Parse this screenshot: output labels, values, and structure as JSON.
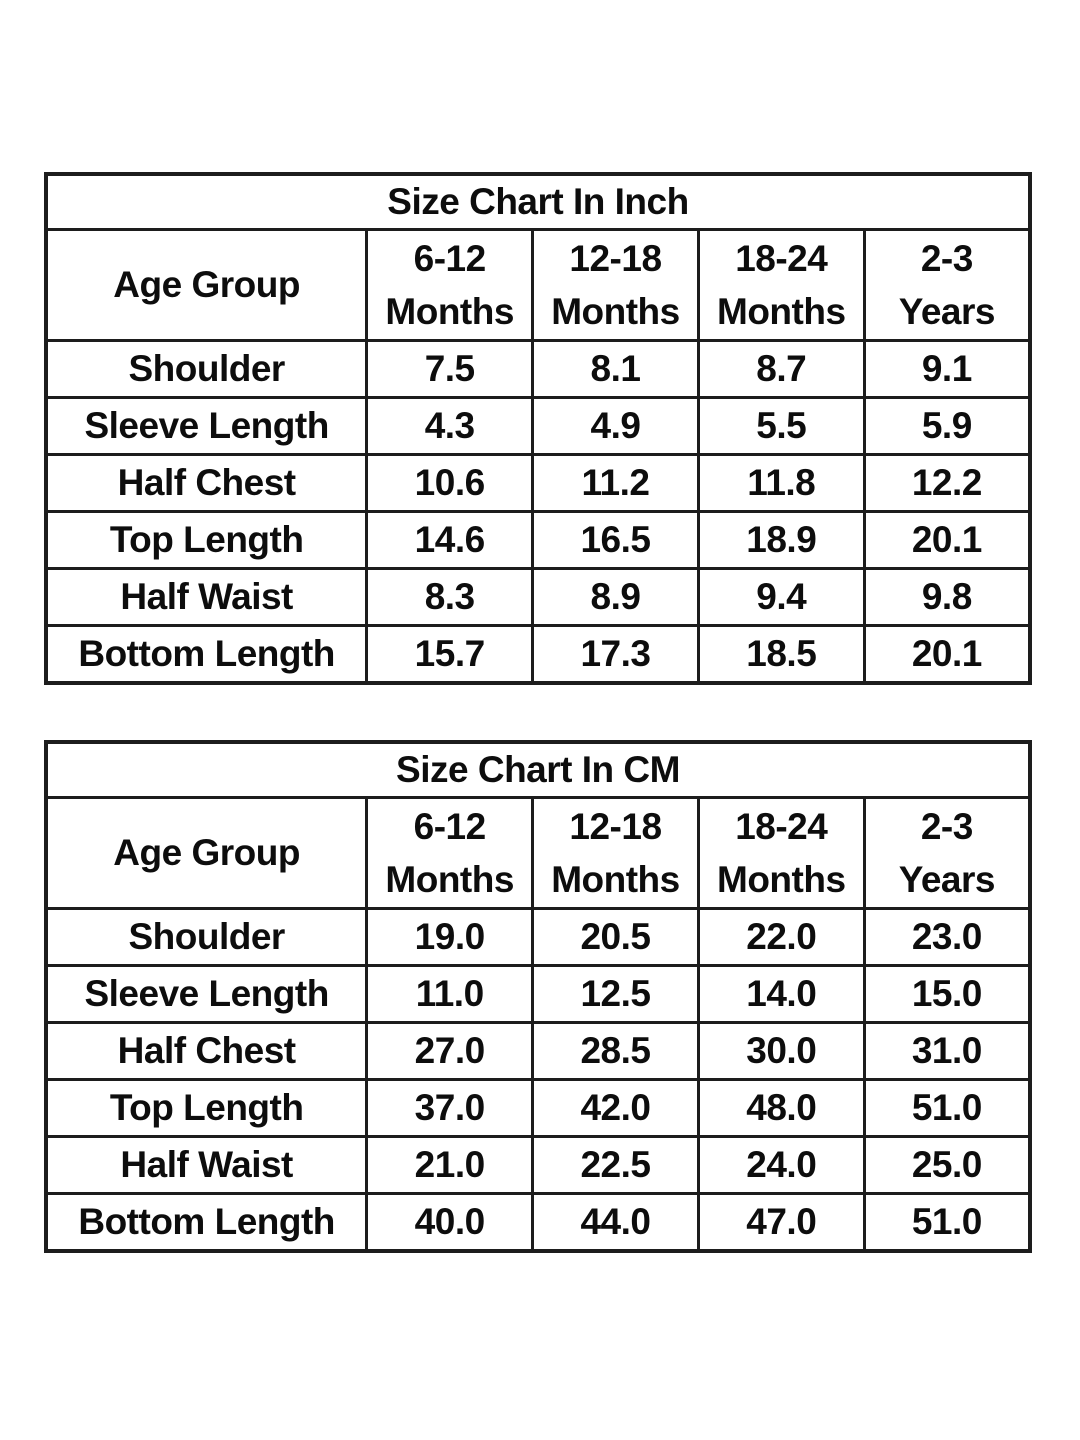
{
  "page": {
    "background": "#ffffff",
    "text_color": "#0d0d0d",
    "border_color": "#1d1d1d"
  },
  "tables": [
    {
      "title": "Size Chart In Inch",
      "corner_label": "Age Group",
      "columns": [
        {
          "line1": "6-12",
          "line2": "Months"
        },
        {
          "line1": "12-18",
          "line2": "Months"
        },
        {
          "line1": "18-24",
          "line2": "Months"
        },
        {
          "line1": "2-3",
          "line2": "Years"
        }
      ],
      "rows": [
        {
          "label": "Shoulder",
          "values": [
            "7.5",
            "8.1",
            "8.7",
            "9.1"
          ]
        },
        {
          "label": "Sleeve Length",
          "values": [
            "4.3",
            "4.9",
            "5.5",
            "5.9"
          ]
        },
        {
          "label": "Half Chest",
          "values": [
            "10.6",
            "11.2",
            "11.8",
            "12.2"
          ]
        },
        {
          "label": "Top Length",
          "values": [
            "14.6",
            "16.5",
            "18.9",
            "20.1"
          ]
        },
        {
          "label": "Half Waist",
          "values": [
            "8.3",
            "8.9",
            "9.4",
            "9.8"
          ]
        },
        {
          "label": "Bottom Length",
          "values": [
            "15.7",
            "17.3",
            "18.5",
            "20.1"
          ]
        }
      ]
    },
    {
      "title": "Size Chart In CM",
      "corner_label": "Age Group",
      "columns": [
        {
          "line1": "6-12",
          "line2": "Months"
        },
        {
          "line1": "12-18",
          "line2": "Months"
        },
        {
          "line1": "18-24",
          "line2": "Months"
        },
        {
          "line1": "2-3",
          "line2": "Years"
        }
      ],
      "rows": [
        {
          "label": "Shoulder",
          "values": [
            "19.0",
            "20.5",
            "22.0",
            "23.0"
          ]
        },
        {
          "label": "Sleeve Length",
          "values": [
            "11.0",
            "12.5",
            "14.0",
            "15.0"
          ]
        },
        {
          "label": "Half Chest",
          "values": [
            "27.0",
            "28.5",
            "30.0",
            "31.0"
          ]
        },
        {
          "label": "Top Length",
          "values": [
            "37.0",
            "42.0",
            "48.0",
            "51.0"
          ]
        },
        {
          "label": "Half Waist",
          "values": [
            "21.0",
            "22.5",
            "24.0",
            "25.0"
          ]
        },
        {
          "label": "Bottom Length",
          "values": [
            "40.0",
            "44.0",
            "47.0",
            "51.0"
          ]
        }
      ]
    }
  ],
  "chart_data": [
    {
      "type": "table",
      "title": "Size Chart In Inch",
      "unit": "inch",
      "columns": [
        "Age Group",
        "6-12 Months",
        "12-18 Months",
        "18-24 Months",
        "2-3 Years"
      ],
      "rows": [
        [
          "Shoulder",
          7.5,
          8.1,
          8.7,
          9.1
        ],
        [
          "Sleeve Length",
          4.3,
          4.9,
          5.5,
          5.9
        ],
        [
          "Half Chest",
          10.6,
          11.2,
          11.8,
          12.2
        ],
        [
          "Top Length",
          14.6,
          16.5,
          18.9,
          20.1
        ],
        [
          "Half Waist",
          8.3,
          8.9,
          9.4,
          9.8
        ],
        [
          "Bottom Length",
          15.7,
          17.3,
          18.5,
          20.1
        ]
      ]
    },
    {
      "type": "table",
      "title": "Size Chart In CM",
      "unit": "cm",
      "columns": [
        "Age Group",
        "6-12 Months",
        "12-18 Months",
        "18-24 Months",
        "2-3 Years"
      ],
      "rows": [
        [
          "Shoulder",
          19.0,
          20.5,
          22.0,
          23.0
        ],
        [
          "Sleeve Length",
          11.0,
          12.5,
          14.0,
          15.0
        ],
        [
          "Half Chest",
          27.0,
          28.5,
          30.0,
          31.0
        ],
        [
          "Top Length",
          37.0,
          42.0,
          48.0,
          51.0
        ],
        [
          "Half Waist",
          21.0,
          22.5,
          24.0,
          25.0
        ],
        [
          "Bottom Length",
          40.0,
          44.0,
          47.0,
          51.0
        ]
      ]
    }
  ]
}
